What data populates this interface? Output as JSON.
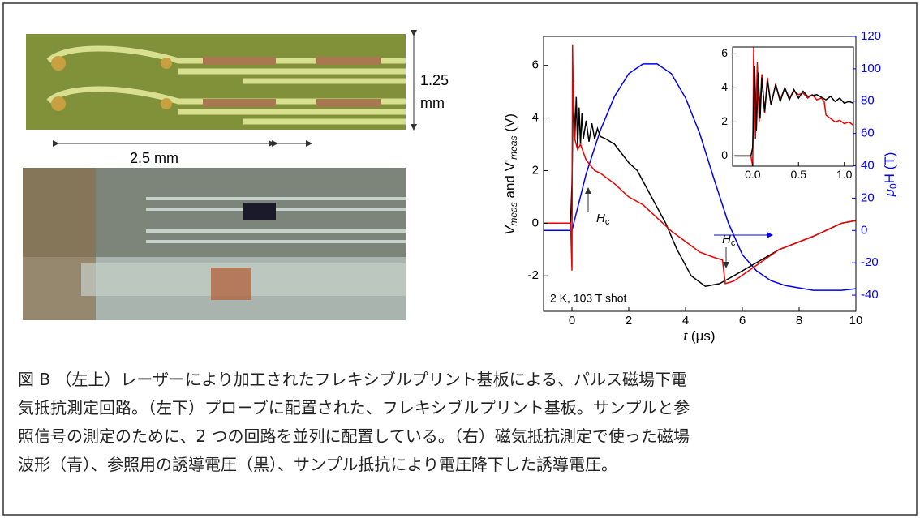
{
  "figure": {
    "photo_top": {
      "height_label": "1.25",
      "height_unit": "mm",
      "width_label": "2.5 mm"
    }
  },
  "chart_data": [
    {
      "type": "line",
      "xlabel": [
        "t",
        " (μs)"
      ],
      "ylabel": [
        "V",
        "meas",
        " and V'",
        "meas",
        " (V)"
      ],
      "y2label": [
        "μ",
        "0",
        "H (T)"
      ],
      "xlim": [
        -1,
        10
      ],
      "xticks": [
        0,
        2,
        4,
        6,
        8,
        10
      ],
      "ylim": [
        -3.35,
        7.1
      ],
      "yticks": [
        -2,
        0,
        2,
        4,
        6
      ],
      "y2lim": [
        -50,
        120
      ],
      "y2ticks": [
        -40,
        -20,
        0,
        20,
        40,
        60,
        80,
        100,
        120
      ],
      "annotations": [
        {
          "text": "H",
          "sub": "c"
        },
        {
          "text": "H",
          "sub": "c"
        },
        {
          "text": "2 K, 103 T shot"
        }
      ],
      "series": [
        {
          "color": "#0000ee",
          "axis": "y2",
          "x": [
            -1,
            0,
            0.5,
            1,
            1.5,
            2,
            2.5,
            3,
            3.5,
            4,
            4.5,
            5,
            5.5,
            6,
            6.5,
            7,
            7.5,
            8,
            8.5,
            9,
            9.5,
            10
          ],
          "values": [
            0,
            0,
            35,
            62,
            83,
            97,
            103,
            103,
            97,
            82,
            60,
            32,
            5,
            -15,
            -25,
            -31,
            -34,
            -35.5,
            -37,
            -37,
            -37,
            -36
          ]
        },
        {
          "color": "#000000",
          "x": [
            -1,
            -0.05,
            0,
            0.05,
            0.1,
            0.15,
            0.2,
            0.25,
            0.3,
            0.35,
            0.4,
            0.5,
            0.6,
            0.7,
            0.8,
            0.9,
            1,
            1.2,
            1.5,
            2,
            2.3,
            2.8,
            3.3,
            3.7,
            4.2,
            4.7,
            5.2,
            5.7,
            6.5,
            7.3,
            8.5,
            9.5,
            10
          ],
          "values": [
            0,
            0,
            1.5,
            5.3,
            3.2,
            4.8,
            2.9,
            4.4,
            3,
            4.2,
            3.2,
            3.9,
            3.1,
            3.8,
            3.2,
            3.6,
            3.3,
            3.2,
            3,
            2.3,
            2,
            1,
            0,
            -1,
            -2,
            -2.4,
            -2.3,
            -2,
            -1.5,
            -1,
            -0.5,
            0,
            0.1
          ]
        },
        {
          "color": "#ee0000",
          "x": [
            -1,
            -0.05,
            0,
            0.02,
            0.05,
            0.1,
            0.2,
            0.3,
            0.5,
            0.8,
            1,
            1.5,
            2,
            2.5,
            3,
            3.5,
            4,
            4.5,
            5,
            5.3,
            5.4,
            5.7,
            6.5,
            7.3,
            8.5,
            9.5,
            10
          ],
          "values": [
            0,
            0,
            -1.8,
            6.8,
            4.5,
            3.2,
            2.8,
            3,
            2.4,
            2,
            1.9,
            1.5,
            1,
            0.7,
            0.2,
            -0.3,
            -0.7,
            -1.1,
            -1.3,
            -1.4,
            -2.3,
            -2.2,
            -1.6,
            -1,
            -0.5,
            0,
            0.1
          ]
        }
      ]
    },
    {
      "type": "line",
      "xlim": [
        -0.22,
        1.1
      ],
      "xticks": [
        {
          "value": 0,
          "label": "0.0"
        },
        {
          "value": 0.5,
          "label": "0.5"
        },
        {
          "value": 1,
          "label": "1.0"
        }
      ],
      "ylim": [
        -0.6,
        6.4
      ],
      "yticks": [
        0,
        2,
        4,
        6
      ],
      "series": [
        {
          "color": "#ee0000",
          "x": [
            -0.2,
            -0.02,
            0,
            0.01,
            0.03,
            0.05,
            0.07,
            0.1,
            0.13,
            0.16,
            0.2,
            0.25,
            0.3,
            0.35,
            0.4,
            0.45,
            0.5,
            0.55,
            0.6,
            0.65,
            0.7,
            0.75,
            0.78,
            0.8,
            0.85,
            0.9,
            0.95,
            1,
            1.05,
            1.1
          ],
          "values": [
            0,
            0,
            -0.6,
            6.4,
            1,
            5.5,
            2,
            4.8,
            2.5,
            4.6,
            3,
            4.2,
            3.3,
            4,
            3.4,
            3.8,
            3.6,
            3.7,
            3.4,
            3.6,
            3.3,
            3.4,
            3.2,
            2.4,
            2.2,
            2,
            2.1,
            1.9,
            2,
            1.8
          ]
        },
        {
          "color": "#000000",
          "x": [
            -0.2,
            -0.02,
            0,
            0.02,
            0.04,
            0.06,
            0.08,
            0.1,
            0.13,
            0.16,
            0.2,
            0.25,
            0.3,
            0.35,
            0.4,
            0.45,
            0.5,
            0.55,
            0.6,
            0.7,
            0.8,
            0.85,
            0.9,
            0.95,
            1,
            1.05,
            1.1
          ],
          "values": [
            0,
            0,
            0.5,
            5.3,
            1.5,
            4.9,
            2.2,
            4.6,
            2.6,
            4.4,
            3,
            4.2,
            3.2,
            4,
            3.3,
            3.9,
            3.4,
            3.8,
            3.5,
            3.6,
            3.3,
            3.5,
            3.2,
            3.4,
            3.1,
            3.2,
            3.1
          ]
        }
      ]
    }
  ],
  "caption": {
    "lines": [
      "図 B （左上）レーザーにより加工されたフレキシブルプリント基板による、パルス磁場下電",
      "気抵抗測定回路。（左下）プローブに配置された、フレキシブルプリント基板。サンプルと参",
      "照信号の測定のために、2 つの回路を並列に配置している。（右）磁気抵抗測定で使った磁場",
      "波形（青）、参照用の誘導電圧（黒）、サンプル抵抗により電圧降下した誘導電圧。"
    ]
  }
}
